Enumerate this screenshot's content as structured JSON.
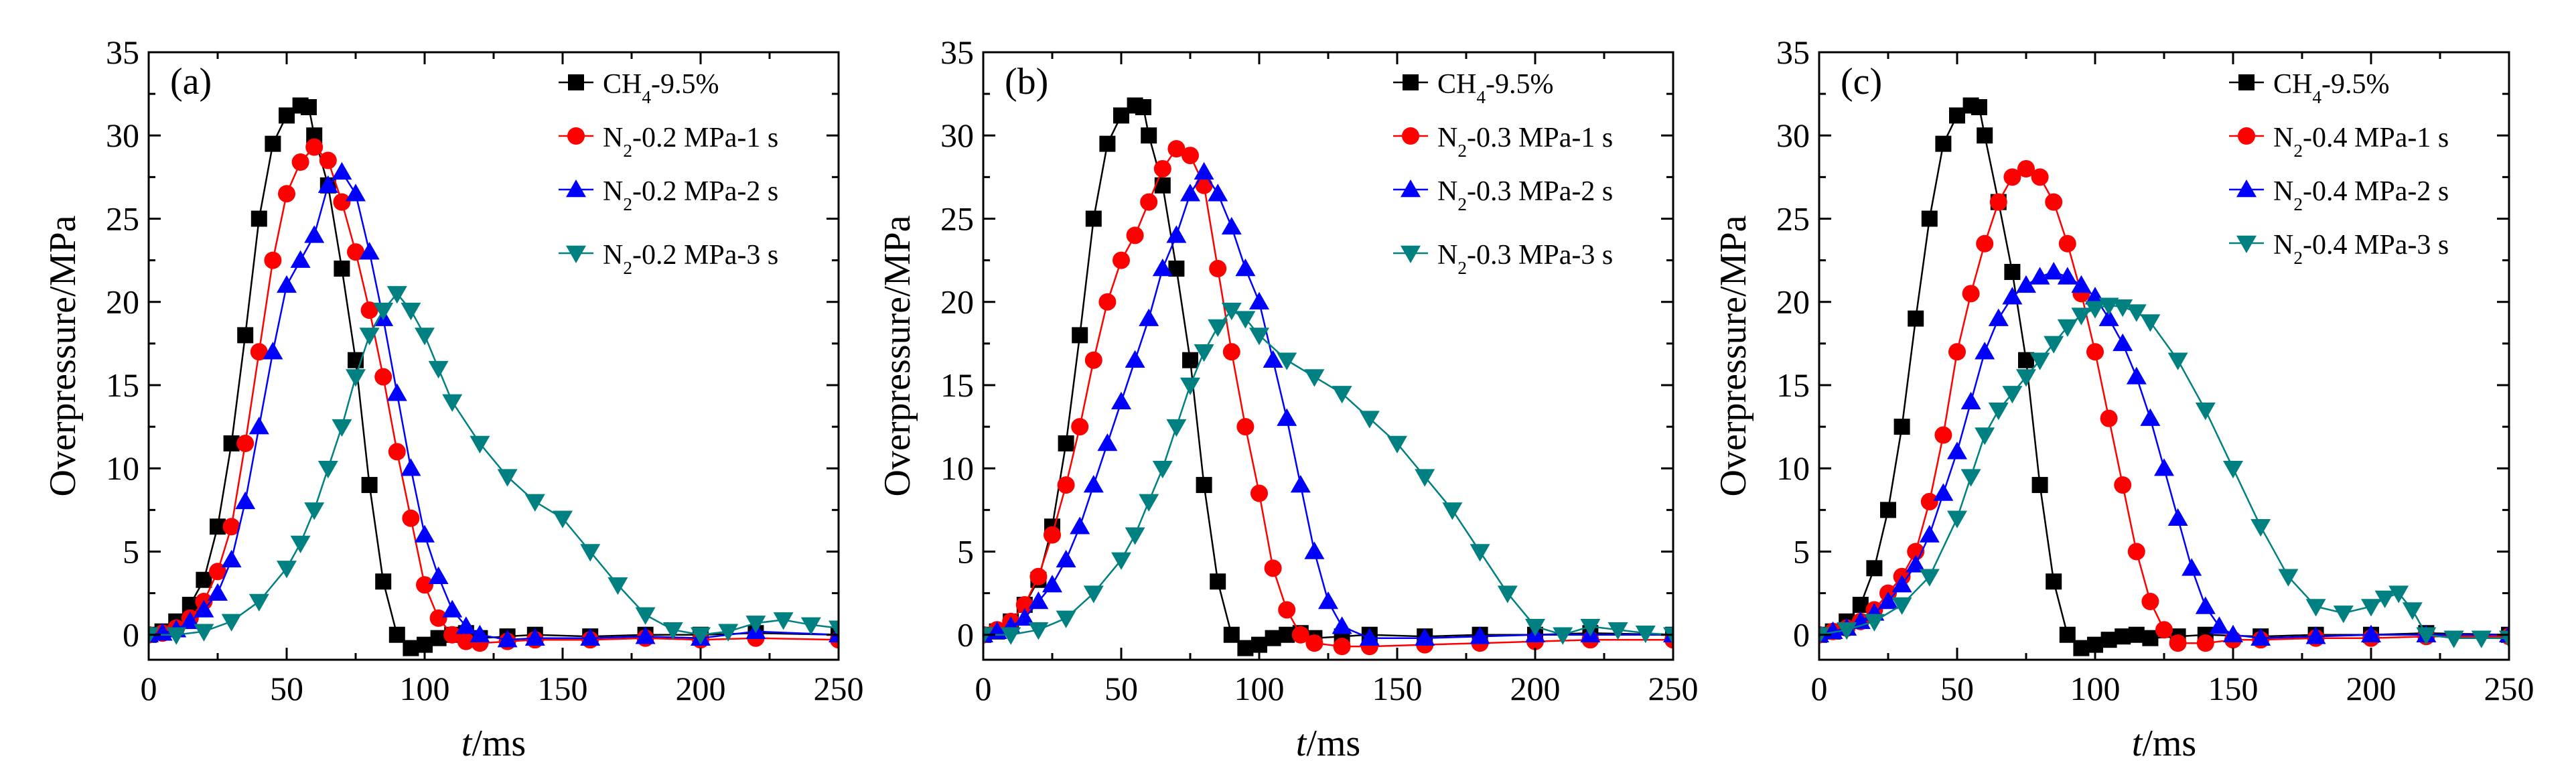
{
  "figure": {
    "axes_labels": {
      "xlabel_italic": "t",
      "xlabel_unit": "/ms",
      "ylabel": "Overpressure/MPa"
    }
  },
  "chart_data": [
    {
      "type": "line",
      "panel_label": "(a)",
      "xlabel": "t/ms",
      "ylabel": "Overpressure/MPa",
      "xlim": [
        0,
        250
      ],
      "ylim": [
        -1.5,
        35
      ],
      "xticks": [
        0,
        50,
        100,
        150,
        200,
        250
      ],
      "yticks": [
        0,
        5,
        10,
        15,
        20,
        25,
        30,
        35
      ],
      "grid": false,
      "legend": "top-right",
      "series": [
        {
          "name": "CH4-9.5%",
          "label_main": "CH",
          "label_sub": "4",
          "label_rest": "-9.5%",
          "color": "#000000",
          "marker": "square",
          "x": [
            0,
            5,
            10,
            15,
            20,
            25,
            30,
            35,
            40,
            45,
            50,
            55,
            58,
            60,
            65,
            70,
            75,
            80,
            85,
            90,
            95,
            100,
            105,
            110,
            115,
            120,
            130,
            140,
            160,
            180,
            200,
            220,
            250
          ],
          "y": [
            0,
            0.2,
            0.8,
            1.8,
            3.3,
            6.5,
            11.5,
            18,
            25,
            29.5,
            31.2,
            31.8,
            31.7,
            30,
            27,
            22,
            16.5,
            9,
            3.2,
            0,
            -0.8,
            -0.6,
            -0.2,
            0,
            0.1,
            -0.2,
            -0.1,
            0,
            -0.1,
            0,
            0,
            0.1,
            0
          ]
        },
        {
          "name": "N2-0.2 MPa-1 s",
          "label_main": "N",
          "label_sub": "2",
          "label_rest": "-0.2 MPa-1 s",
          "color": "#ff0000",
          "marker": "circle",
          "x": [
            0,
            5,
            10,
            15,
            20,
            25,
            30,
            35,
            40,
            45,
            50,
            55,
            60,
            65,
            70,
            75,
            80,
            85,
            90,
            95,
            100,
            105,
            110,
            115,
            120,
            130,
            140,
            160,
            180,
            200,
            220,
            250
          ],
          "y": [
            0,
            0.1,
            0.4,
            1,
            2,
            3.8,
            6.5,
            11.5,
            17,
            22.5,
            26.5,
            28.4,
            29.3,
            28.5,
            26,
            23,
            19.5,
            15.5,
            11,
            7,
            3,
            1,
            0,
            -0.4,
            -0.5,
            -0.4,
            -0.3,
            -0.3,
            -0.2,
            -0.3,
            -0.2,
            -0.3
          ]
        },
        {
          "name": "N2-0.2 MPa-2 s",
          "label_main": "N",
          "label_sub": "2",
          "label_rest": "-0.2 MPa-2 s",
          "color": "#0000ff",
          "marker": "triangle-up",
          "x": [
            0,
            5,
            10,
            15,
            20,
            25,
            30,
            35,
            40,
            45,
            50,
            55,
            60,
            65,
            70,
            75,
            80,
            85,
            90,
            95,
            100,
            105,
            110,
            115,
            120,
            130,
            140,
            160,
            180,
            200,
            220,
            250
          ],
          "y": [
            0,
            0.1,
            0.3,
            0.8,
            1.5,
            2.5,
            4.5,
            8,
            12.5,
            17,
            21,
            22.5,
            24,
            27,
            27.8,
            26.5,
            23,
            19,
            14.5,
            10,
            6,
            3.5,
            1.5,
            0.5,
            0,
            -0.3,
            -0.2,
            -0.2,
            -0.1,
            -0.2,
            0.2,
            0
          ]
        },
        {
          "name": "N2-0.2 MPa-3 s",
          "label_main": "N",
          "label_sub": "2",
          "label_rest": "-0.2 MPa-3 s",
          "color": "#008080",
          "marker": "triangle-down",
          "x": [
            0,
            10,
            20,
            30,
            40,
            50,
            55,
            60,
            65,
            70,
            75,
            80,
            85,
            90,
            95,
            100,
            105,
            110,
            120,
            130,
            140,
            150,
            160,
            170,
            180,
            190,
            200,
            210,
            220,
            230,
            240,
            250
          ],
          "y": [
            0,
            0,
            0.2,
            0.8,
            2,
            4,
            5.5,
            7.5,
            10,
            12.5,
            15.5,
            18,
            19.5,
            20.5,
            19.5,
            18,
            16,
            14,
            11.5,
            9.5,
            8,
            7,
            5,
            3,
            1.2,
            0.3,
            0,
            0.2,
            0.7,
            0.9,
            0.6,
            0.4
          ]
        }
      ]
    },
    {
      "type": "line",
      "panel_label": "(b)",
      "xlabel": "t/ms",
      "ylabel": "Overpressure/MPa",
      "xlim": [
        0,
        250
      ],
      "ylim": [
        -1.5,
        35
      ],
      "xticks": [
        0,
        50,
        100,
        150,
        200,
        250
      ],
      "yticks": [
        0,
        5,
        10,
        15,
        20,
        25,
        30,
        35
      ],
      "grid": false,
      "legend": "top-right",
      "series": [
        {
          "name": "CH4-9.5%",
          "label_main": "CH",
          "label_sub": "4",
          "label_rest": "-9.5%",
          "color": "#000000",
          "marker": "square",
          "x": [
            0,
            5,
            10,
            15,
            20,
            25,
            30,
            35,
            40,
            45,
            50,
            55,
            58,
            60,
            65,
            70,
            75,
            80,
            85,
            90,
            95,
            100,
            105,
            110,
            115,
            120,
            130,
            140,
            160,
            180,
            200,
            220,
            250
          ],
          "y": [
            0,
            0.2,
            0.8,
            1.8,
            3.3,
            6.5,
            11.5,
            18,
            25,
            29.5,
            31.2,
            31.8,
            31.7,
            30,
            27,
            22,
            16.5,
            9,
            3.2,
            0,
            -0.8,
            -0.6,
            -0.2,
            0,
            0.1,
            -0.2,
            -0.1,
            0,
            -0.1,
            0,
            0,
            0.1,
            0
          ]
        },
        {
          "name": "N2-0.3 MPa-1 s",
          "label_main": "N",
          "label_sub": "2",
          "label_rest": "-0.3 MPa-1 s",
          "color": "#ff0000",
          "marker": "circle",
          "x": [
            0,
            5,
            10,
            15,
            20,
            25,
            30,
            35,
            40,
            45,
            50,
            55,
            60,
            65,
            70,
            75,
            80,
            85,
            90,
            95,
            100,
            105,
            110,
            115,
            120,
            130,
            140,
            160,
            180,
            200,
            220,
            250
          ],
          "y": [
            0,
            0.3,
            0.8,
            1.8,
            3.5,
            6,
            9,
            12.5,
            16.5,
            20,
            22.5,
            24,
            26,
            28,
            29.2,
            28.8,
            27,
            22,
            17,
            12.5,
            8.5,
            4,
            1.5,
            0,
            -0.5,
            -0.7,
            -0.7,
            -0.6,
            -0.5,
            -0.4,
            -0.3,
            -0.3
          ]
        },
        {
          "name": "N2-0.3 MPa-2 s",
          "label_main": "N",
          "label_sub": "2",
          "label_rest": "-0.3 MPa-2 s",
          "color": "#0000ff",
          "marker": "triangle-up",
          "x": [
            0,
            5,
            10,
            15,
            20,
            25,
            30,
            35,
            40,
            45,
            50,
            55,
            60,
            65,
            70,
            75,
            80,
            85,
            90,
            95,
            100,
            105,
            110,
            115,
            120,
            125,
            130,
            140,
            160,
            180,
            200,
            220,
            250
          ],
          "y": [
            0,
            0.2,
            0.5,
            1,
            2,
            3,
            4.5,
            6.5,
            9,
            11.5,
            14,
            16.5,
            19,
            22,
            24,
            26.5,
            27.8,
            26.5,
            24.5,
            22,
            20,
            16.5,
            13,
            9,
            5,
            2,
            0.5,
            -0.2,
            -0.2,
            -0.1,
            0,
            0,
            0
          ]
        },
        {
          "name": "N2-0.3 MPa-3 s",
          "label_main": "N",
          "label_sub": "2",
          "label_rest": "-0.3 MPa-3 s",
          "color": "#008080",
          "marker": "triangle-down",
          "x": [
            0,
            10,
            20,
            30,
            40,
            50,
            55,
            60,
            65,
            70,
            75,
            80,
            85,
            90,
            95,
            100,
            110,
            120,
            130,
            140,
            150,
            160,
            170,
            180,
            190,
            200,
            210,
            220,
            230,
            240,
            250
          ],
          "y": [
            0,
            0,
            0.3,
            1,
            2.5,
            4.5,
            6,
            8,
            10,
            12.5,
            15,
            17,
            18.5,
            19.5,
            19,
            18,
            16.5,
            15.5,
            14.5,
            13,
            11.5,
            9.5,
            7.5,
            5,
            2.5,
            0.5,
            0,
            0.5,
            0.3,
            0.1,
            0
          ]
        }
      ]
    },
    {
      "type": "line",
      "panel_label": "(c)",
      "xlabel": "t/ms",
      "ylabel": "Overpressure/MPa",
      "xlim": [
        0,
        250
      ],
      "ylim": [
        -1.5,
        35
      ],
      "xticks": [
        0,
        50,
        100,
        150,
        200,
        250
      ],
      "yticks": [
        0,
        5,
        10,
        15,
        20,
        25,
        30,
        35
      ],
      "grid": false,
      "legend": "top-right",
      "series": [
        {
          "name": "CH4-9.5%",
          "label_main": "CH",
          "label_sub": "4",
          "label_rest": "-9.5%",
          "color": "#000000",
          "marker": "square",
          "x": [
            0,
            5,
            10,
            15,
            20,
            25,
            30,
            35,
            40,
            45,
            50,
            55,
            58,
            60,
            65,
            70,
            75,
            80,
            85,
            90,
            95,
            100,
            105,
            110,
            115,
            120,
            130,
            140,
            160,
            180,
            200,
            220,
            250
          ],
          "y": [
            0,
            0.2,
            0.8,
            1.8,
            4,
            7.5,
            12.5,
            19,
            25,
            29.5,
            31.2,
            31.8,
            31.7,
            30,
            26,
            21.8,
            16.5,
            9,
            3.2,
            0,
            -0.8,
            -0.6,
            -0.3,
            -0.1,
            0,
            -0.2,
            -0.1,
            0,
            -0.1,
            0,
            0,
            0.1,
            0
          ]
        },
        {
          "name": "N2-0.4 MPa-1 s",
          "label_main": "N",
          "label_sub": "2",
          "label_rest": "-0.4 MPa-1 s",
          "color": "#ff0000",
          "marker": "circle",
          "x": [
            0,
            5,
            10,
            15,
            20,
            25,
            30,
            35,
            40,
            45,
            50,
            55,
            60,
            65,
            70,
            75,
            80,
            85,
            90,
            95,
            100,
            105,
            110,
            115,
            120,
            125,
            130,
            140,
            150,
            160,
            180,
            200,
            220,
            250
          ],
          "y": [
            0,
            0.2,
            0.4,
            0.8,
            1.5,
            2.5,
            3.5,
            5,
            8,
            12,
            17,
            20.5,
            23.5,
            26,
            27.5,
            28,
            27.5,
            26,
            23.5,
            20.5,
            17,
            13,
            9,
            5,
            2,
            0.3,
            -0.5,
            -0.5,
            -0.3,
            -0.3,
            -0.2,
            -0.2,
            -0.1,
            -0.1
          ]
        },
        {
          "name": "N2-0.4 MPa-2 s",
          "label_main": "N",
          "label_sub": "2",
          "label_rest": "-0.4 MPa-2 s",
          "color": "#0000ff",
          "marker": "triangle-up",
          "x": [
            0,
            5,
            10,
            15,
            20,
            25,
            30,
            35,
            40,
            45,
            50,
            55,
            60,
            65,
            70,
            75,
            80,
            85,
            90,
            95,
            100,
            105,
            110,
            115,
            120,
            125,
            130,
            135,
            140,
            145,
            150,
            160,
            180,
            200,
            220,
            250
          ],
          "y": [
            0,
            0.2,
            0.4,
            0.8,
            1.3,
            2,
            3,
            4.2,
            6,
            8.5,
            11,
            14,
            17,
            19,
            20.3,
            21,
            21.5,
            21.8,
            21.5,
            21,
            20.3,
            19,
            17.5,
            15.5,
            13,
            10,
            7,
            4,
            1.7,
            0.5,
            0,
            -0.2,
            -0.1,
            0,
            0,
            0
          ]
        },
        {
          "name": "N2-0.4 MPa-3 s",
          "label_main": "N",
          "label_sub": "2",
          "label_rest": "-0.4 MPa-3 s",
          "color": "#008080",
          "marker": "triangle-down",
          "x": [
            0,
            10,
            20,
            30,
            40,
            50,
            55,
            60,
            65,
            70,
            75,
            80,
            85,
            90,
            95,
            100,
            105,
            110,
            115,
            120,
            130,
            140,
            150,
            160,
            170,
            180,
            190,
            200,
            205,
            210,
            215,
            220,
            230,
            240,
            250
          ],
          "y": [
            0,
            0.3,
            0.8,
            1.8,
            3.5,
            7,
            9.5,
            12,
            13.5,
            14.5,
            15.5,
            16.5,
            17.5,
            18.5,
            19.2,
            19.6,
            19.8,
            19.7,
            19.4,
            18.8,
            16.5,
            13.5,
            10,
            6.5,
            3.5,
            1.7,
            1.3,
            1.7,
            2.2,
            2.5,
            1.5,
            0,
            -0.2,
            -0.2,
            -0.2
          ]
        }
      ]
    }
  ]
}
